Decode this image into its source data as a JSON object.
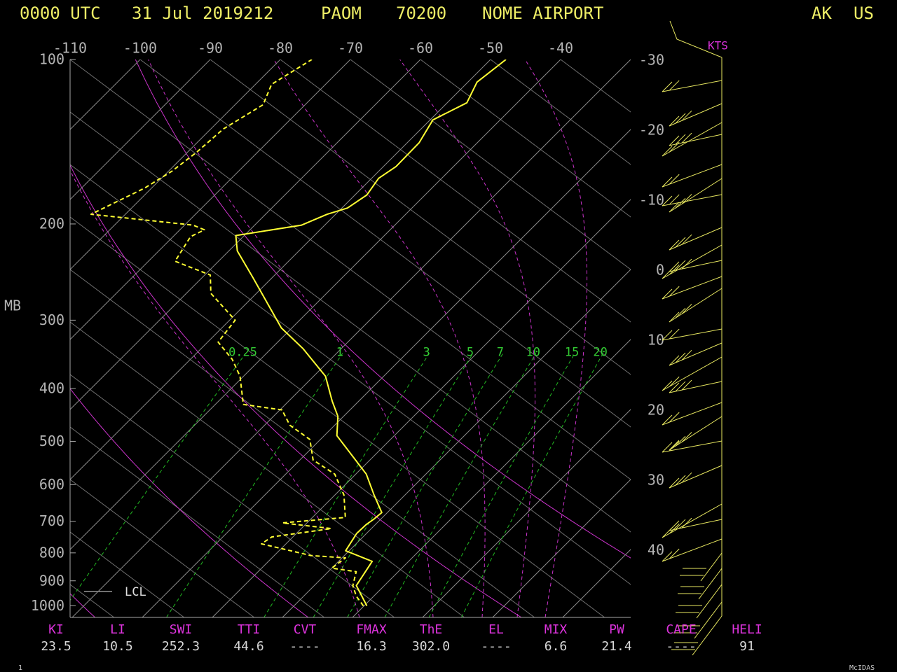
{
  "header": {
    "time": "0000 UTC",
    "date": "31 Jul 2019212",
    "station": "PAOM",
    "station_id": "70200",
    "station_name": "NOME AIRPORT",
    "state": "AK",
    "country": "US"
  },
  "chart_data": {
    "type": "skewt",
    "y_label": "MB",
    "y_scale": "log",
    "ylim": [
      1050,
      100
    ],
    "yticks": [
      100,
      200,
      300,
      400,
      500,
      600,
      700,
      800,
      900,
      1000
    ],
    "xlim": [
      -110,
      -30
    ],
    "xticks": [
      -110,
      -100,
      -90,
      -80,
      -70,
      -60,
      -50,
      -40
    ],
    "xticks_right": [
      -30,
      -20,
      -10,
      0,
      10,
      20,
      30,
      40
    ],
    "mixing_ratio_labels": [
      0.25,
      1,
      3,
      5,
      7,
      10,
      15,
      20
    ],
    "series": [
      {
        "color": "#ffff33",
        "style": "solid",
        "pressure": [
          1000,
          918,
          829,
          793,
          737,
          709,
          695,
          675,
          627,
          574,
          488,
          450,
          422,
          380,
          338,
          310,
          251,
          224,
          210,
          201,
          192,
          187,
          177,
          165,
          157,
          142,
          129,
          120,
          110,
          100
        ],
        "values": [
          10.4,
          6.0,
          4.8,
          -0.5,
          -1.4,
          -1.3,
          -1.0,
          -0.8,
          -4.4,
          -8.5,
          -18.2,
          -20.8,
          -23.8,
          -28.3,
          -35.5,
          -41.5,
          -52.7,
          -58.8,
          -61.2,
          -53.3,
          -51.2,
          -49.2,
          -48.3,
          -49.0,
          -48.2,
          -48.3,
          -49.6,
          -47.2,
          -48.7,
          -47.8
        ]
      },
      {
        "color": "#ffff33",
        "style": "dashed",
        "pressure": [
          1000,
          960,
          918,
          866,
          853,
          817,
          809,
          770,
          748,
          722,
          705,
          689,
          627,
          574,
          541,
          496,
          467,
          438,
          428,
          380,
          354,
          329,
          300,
          268,
          248,
          234,
          211,
          205,
          201,
          192,
          172,
          160,
          148,
          134,
          121,
          111,
          100
        ],
        "values": [
          9.9,
          7.5,
          5.5,
          4.0,
          0.0,
          0.5,
          -4.8,
          -13.5,
          -13.0,
          -5.7,
          -13.5,
          -5.3,
          -8.7,
          -13.0,
          -18.1,
          -21.5,
          -26.4,
          -29.7,
          -36.0,
          -40.5,
          -44.0,
          -48.5,
          -49.2,
          -56.5,
          -59.2,
          -66.2,
          -67.5,
          -66.5,
          -68.8,
          -84.9,
          -81.0,
          -79.5,
          -78.7,
          -78.2,
          -76.0,
          -77.7,
          -75.5
        ]
      }
    ],
    "lcl_label": "LCL",
    "wind_units": "KTS"
  },
  "indices": [
    {
      "label": "KI",
      "value": "23.5"
    },
    {
      "label": "LI",
      "value": "10.5"
    },
    {
      "label": "SWI",
      "value": "252.3"
    },
    {
      "label": "TTI",
      "value": "44.6"
    },
    {
      "label": "CVT",
      "value": "----"
    },
    {
      "label": "FMAX",
      "value": "16.3"
    },
    {
      "label": "ThE",
      "value": "302.0"
    },
    {
      "label": "EL",
      "value": "----"
    },
    {
      "label": "MIX",
      "value": "6.6"
    },
    {
      "label": "PW",
      "value": "21.4"
    },
    {
      "label": "CAPE",
      "value": "----"
    },
    {
      "label": "HELI",
      "value": "91"
    }
  ],
  "footer": {
    "page": "1",
    "brand": "McIDAS"
  }
}
